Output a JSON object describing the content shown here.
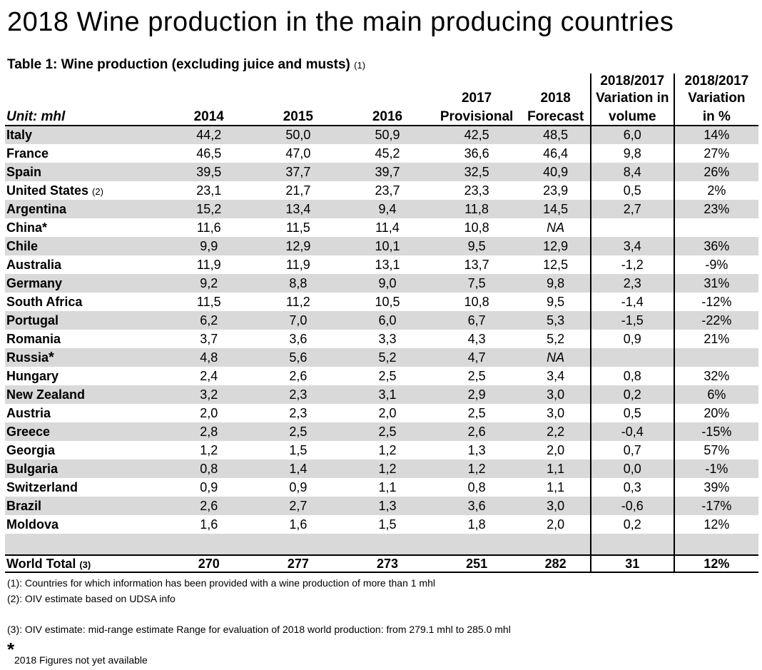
{
  "title": "2018 Wine production in the main producing countries",
  "caption": {
    "text": "Table 1: Wine production (excluding juice and musts)",
    "note": "(1)"
  },
  "header": {
    "unit": "Unit: mhl",
    "y2014": "2014",
    "y2015": "2015",
    "y2016": "2016",
    "y2017_top": "2017",
    "y2017_bottom": "Provisional",
    "y2018_top": "2018",
    "y2018_bottom": "Forecast",
    "var_line1": "2018/2017",
    "var_line2": "Variation in",
    "var_line3": "volume",
    "pct_line1": "2018/2017",
    "pct_line2": "Variation",
    "pct_line3": "in %"
  },
  "rows": [
    {
      "country": "Italy",
      "note": "",
      "star": "",
      "v2014": "44,2",
      "v2015": "50,0",
      "v2016": "50,9",
      "v2017": "42,5",
      "v2018": "48,5",
      "var": "6,0",
      "pct": "14%"
    },
    {
      "country": "France",
      "note": "",
      "star": "",
      "v2014": "46,5",
      "v2015": "47,0",
      "v2016": "45,2",
      "v2017": "36,6",
      "v2018": "46,4",
      "var": "9,8",
      "pct": "27%"
    },
    {
      "country": "Spain",
      "note": "",
      "star": "",
      "v2014": "39,5",
      "v2015": "37,7",
      "v2016": "39,7",
      "v2017": "32,5",
      "v2018": "40,9",
      "var": "8,4",
      "pct": "26%"
    },
    {
      "country": "United States",
      "note": "(2)",
      "star": "",
      "v2014": "23,1",
      "v2015": "21,7",
      "v2016": "23,7",
      "v2017": "23,3",
      "v2018": "23,9",
      "var": "0,5",
      "pct": "2%"
    },
    {
      "country": "Argentina",
      "note": "",
      "star": "",
      "v2014": "15,2",
      "v2015": "13,4",
      "v2016": "9,4",
      "v2017": "11,8",
      "v2018": "14,5",
      "var": "2,7",
      "pct": "23%"
    },
    {
      "country": "China*",
      "note": "",
      "star": "",
      "v2014": "11,6",
      "v2015": "11,5",
      "v2016": "11,4",
      "v2017": "10,8",
      "v2018": "NA",
      "var": "",
      "pct": ""
    },
    {
      "country": "Chile",
      "note": "",
      "star": "",
      "v2014": "9,9",
      "v2015": "12,9",
      "v2016": "10,1",
      "v2017": "9,5",
      "v2018": "12,9",
      "var": "3,4",
      "pct": "36%"
    },
    {
      "country": "Australia",
      "note": "",
      "star": "",
      "v2014": "11,9",
      "v2015": "11,9",
      "v2016": "13,1",
      "v2017": "13,7",
      "v2018": "12,5",
      "var": "-1,2",
      "pct": "-9%"
    },
    {
      "country": "Germany",
      "note": "",
      "star": "",
      "v2014": "9,2",
      "v2015": "8,8",
      "v2016": "9,0",
      "v2017": "7,5",
      "v2018": "9,8",
      "var": "2,3",
      "pct": "31%"
    },
    {
      "country": "South Africa",
      "note": "",
      "star": "",
      "v2014": "11,5",
      "v2015": "11,2",
      "v2016": "10,5",
      "v2017": "10,8",
      "v2018": "9,5",
      "var": "-1,4",
      "pct": "-12%"
    },
    {
      "country": "Portugal",
      "note": "",
      "star": "",
      "v2014": "6,2",
      "v2015": "7,0",
      "v2016": "6,0",
      "v2017": "6,7",
      "v2018": "5,3",
      "var": "-1,5",
      "pct": "-22%"
    },
    {
      "country": "Romania",
      "note": "",
      "star": "",
      "v2014": "3,7",
      "v2015": "3,6",
      "v2016": "3,3",
      "v2017": "4,3",
      "v2018": "5,2",
      "var": "0,9",
      "pct": "21%"
    },
    {
      "country": "Russia",
      "note": "",
      "star": "*",
      "v2014": "4,8",
      "v2015": "5,6",
      "v2016": "5,2",
      "v2017": "4,7",
      "v2018": "NA",
      "var": "",
      "pct": ""
    },
    {
      "country": "Hungary",
      "note": "",
      "star": "",
      "v2014": "2,4",
      "v2015": "2,6",
      "v2016": "2,5",
      "v2017": "2,5",
      "v2018": "3,4",
      "var": "0,8",
      "pct": "32%"
    },
    {
      "country": "New Zealand",
      "note": "",
      "star": "",
      "v2014": "3,2",
      "v2015": "2,3",
      "v2016": "3,1",
      "v2017": "2,9",
      "v2018": "3,0",
      "var": "0,2",
      "pct": "6%"
    },
    {
      "country": "Austria",
      "note": "",
      "star": "",
      "v2014": "2,0",
      "v2015": "2,3",
      "v2016": "2,0",
      "v2017": "2,5",
      "v2018": "3,0",
      "var": "0,5",
      "pct": "20%"
    },
    {
      "country": "Greece",
      "note": "",
      "star": "",
      "v2014": "2,8",
      "v2015": "2,5",
      "v2016": "2,5",
      "v2017": "2,6",
      "v2018": "2,2",
      "var": "-0,4",
      "pct": "-15%"
    },
    {
      "country": "Georgia",
      "note": "",
      "star": "",
      "v2014": "1,2",
      "v2015": "1,5",
      "v2016": "1,2",
      "v2017": "1,3",
      "v2018": "2,0",
      "var": "0,7",
      "pct": "57%"
    },
    {
      "country": "Bulgaria",
      "note": "",
      "star": "",
      "v2014": "0,8",
      "v2015": "1,4",
      "v2016": "1,2",
      "v2017": "1,2",
      "v2018": "1,1",
      "var": "0,0",
      "pct": "-1%"
    },
    {
      "country": "Switzerland",
      "note": "",
      "star": "",
      "v2014": "0,9",
      "v2015": "0,9",
      "v2016": "1,1",
      "v2017": "0,8",
      "v2018": "1,1",
      "var": "0,3",
      "pct": "39%"
    },
    {
      "country": "Brazil",
      "note": "",
      "star": "",
      "v2014": "2,6",
      "v2015": "2,7",
      "v2016": "1,3",
      "v2017": "3,6",
      "v2018": "3,0",
      "var": "-0,6",
      "pct": "-17%"
    },
    {
      "country": "Moldova",
      "note": "",
      "star": "",
      "v2014": "1,6",
      "v2015": "1,6",
      "v2016": "1,5",
      "v2017": "1,8",
      "v2018": "2,0",
      "var": "0,2",
      "pct": "12%"
    }
  ],
  "total": {
    "country": "World Total",
    "note": "(3)",
    "v2014": "270",
    "v2015": "277",
    "v2016": "273",
    "v2017": "251",
    "v2018": "282",
    "var": "31",
    "pct": "12%"
  },
  "footnotes": {
    "fn1": "(1): Countries for which information has been provided with a wine production of more than 1 mhl",
    "fn2": "(2): OIV estimate based on UDSA info",
    "fn3": "(3): OIV estimate: mid-range estimate Range for evaluation of 2018 world production: from 279.1 mhl to 285.0 mhl",
    "star": "*",
    "star_text": "2018 Figures not yet available"
  },
  "colors": {
    "row_shade": "#d9d9d9",
    "rule": "#000000"
  }
}
